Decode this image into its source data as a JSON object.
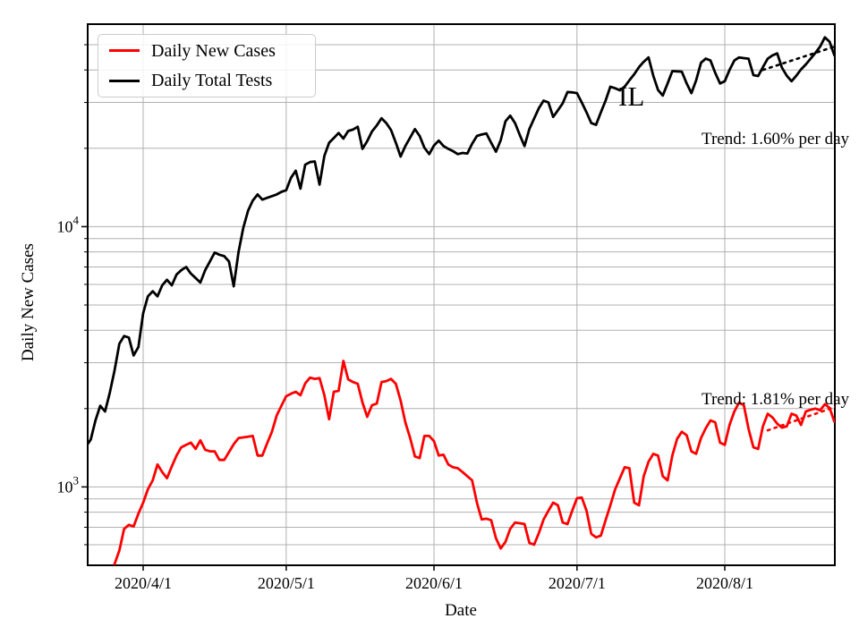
{
  "figure": {
    "ylabel": "Daily New Cases",
    "xlabel": "Date",
    "state_annotation": "IL",
    "legend_items": [
      {
        "label": "Daily New Cases",
        "color": "#ff0000"
      },
      {
        "label": "Daily Total Tests",
        "color": "#000000"
      }
    ],
    "trend_label_tests": "Trend: 1.60% per day",
    "trend_label_cases": "Trend: 1.81% per day",
    "colors": {
      "cases": "#ff0000",
      "tests": "#000000",
      "grid": "#b0b0b0",
      "spine": "#000000"
    }
  },
  "chart_data": {
    "type": "line",
    "title": "",
    "xlabel": "Date",
    "ylabel": "Daily New Cases",
    "yscale": "log",
    "ylim": [
      500,
      60000
    ],
    "grid": true,
    "legend_position": "upper left",
    "x_start_date": "2020/3/20",
    "x_end_date": "2020/8/24",
    "x_tick_labels": [
      "2020/4/1",
      "2020/5/1",
      "2020/6/1",
      "2020/7/1",
      "2020/8/1"
    ],
    "x_tick_days": [
      12,
      42,
      73,
      103,
      134
    ],
    "y_major_ticks": [
      1000,
      10000
    ],
    "y_minor_ticks": [
      600,
      700,
      800,
      900,
      2000,
      3000,
      4000,
      5000,
      6000,
      7000,
      8000,
      9000,
      20000,
      30000,
      40000,
      50000
    ],
    "series": [
      {
        "name": "Daily Total Tests",
        "color": "#000000",
        "start_day": 0,
        "values": [
          1430,
          1520,
          1800,
          2050,
          1950,
          2300,
          2800,
          3550,
          3800,
          3750,
          3200,
          3450,
          4650,
          5400,
          5650,
          5400,
          5950,
          6250,
          5950,
          6550,
          6800,
          7000,
          6600,
          6350,
          6100,
          6800,
          7350,
          7950,
          7800,
          7700,
          7350,
          5900,
          8000,
          9900,
          11500,
          12600,
          13300,
          12700,
          12900,
          13100,
          13300,
          13600,
          13800,
          15400,
          16400,
          14000,
          17300,
          17700,
          17800,
          14500,
          18700,
          21000,
          21900,
          22900,
          21800,
          23300,
          23600,
          24200,
          19900,
          21300,
          23200,
          24500,
          26100,
          25000,
          23500,
          21000,
          18600,
          20400,
          22000,
          23700,
          22300,
          20100,
          19000,
          20500,
          21400,
          20400,
          19900,
          19500,
          19000,
          19200,
          19100,
          20800,
          22300,
          22600,
          22800,
          21000,
          19400,
          21500,
          25400,
          26700,
          25000,
          22500,
          20400,
          23700,
          26000,
          28500,
          30500,
          30000,
          26400,
          28000,
          29800,
          32900,
          32800,
          32600,
          30000,
          27500,
          25000,
          24600,
          27500,
          30500,
          34500,
          34000,
          33400,
          34500,
          36500,
          38500,
          41000,
          43000,
          44700,
          38000,
          33500,
          31900,
          35500,
          39600,
          39500,
          39400,
          35500,
          32600,
          36500,
          42600,
          44200,
          43500,
          39000,
          35500,
          36200,
          40000,
          43500,
          44700,
          44400,
          44200,
          38200,
          37900,
          41000,
          44200,
          45500,
          46300,
          40800,
          38000,
          36200,
          38000,
          40200,
          42000,
          44200,
          46500,
          49200,
          53400,
          51300,
          45500
        ]
      },
      {
        "name": "Daily New Cases",
        "color": "#ff0000",
        "start_day": 6,
        "values": [
          505,
          570,
          690,
          715,
          705,
          790,
          870,
          980,
          1060,
          1220,
          1140,
          1080,
          1200,
          1320,
          1420,
          1450,
          1480,
          1400,
          1510,
          1390,
          1370,
          1370,
          1270,
          1270,
          1360,
          1460,
          1540,
          1550,
          1560,
          1570,
          1320,
          1320,
          1470,
          1630,
          1880,
          2050,
          2230,
          2280,
          2320,
          2250,
          2500,
          2630,
          2600,
          2620,
          2250,
          1820,
          2320,
          2340,
          3050,
          2590,
          2530,
          2490,
          2110,
          1860,
          2060,
          2090,
          2530,
          2550,
          2600,
          2490,
          2150,
          1770,
          1540,
          1310,
          1290,
          1570,
          1570,
          1500,
          1320,
          1330,
          1220,
          1190,
          1180,
          1140,
          1100,
          1060,
          870,
          750,
          755,
          745,
          635,
          580,
          615,
          690,
          730,
          725,
          720,
          610,
          600,
          665,
          750,
          810,
          870,
          850,
          730,
          720,
          810,
          905,
          910,
          810,
          660,
          640,
          650,
          745,
          850,
          980,
          1080,
          1190,
          1180,
          870,
          850,
          1100,
          1250,
          1340,
          1320,
          1100,
          1060,
          1320,
          1530,
          1630,
          1580,
          1370,
          1340,
          1540,
          1680,
          1800,
          1770,
          1480,
          1450,
          1730,
          1950,
          2110,
          2060,
          1670,
          1420,
          1400,
          1710,
          1910,
          1850,
          1750,
          1690,
          1710,
          1910,
          1880,
          1730,
          1950,
          1980,
          2000,
          1970,
          2080,
          2010,
          1780
        ]
      }
    ],
    "trend_lines": [
      {
        "series": "Daily Total Tests",
        "label": "Trend: 1.60% per day",
        "rate_percent_per_day": 1.6,
        "color": "#000000",
        "start_day": 142,
        "start_value": 40000,
        "end_day": 157.5,
        "end_value": 49500,
        "style": "dotted"
      },
      {
        "series": "Daily New Cases",
        "label": "Trend: 1.81% per day",
        "rate_percent_per_day": 1.81,
        "color": "#ff0000",
        "start_day": 143,
        "start_value": 1650,
        "end_day": 157.5,
        "end_value": 2040,
        "style": "dotted"
      }
    ],
    "annotations": [
      {
        "text": "IL",
        "day": 115,
        "value": 30000
      }
    ]
  }
}
